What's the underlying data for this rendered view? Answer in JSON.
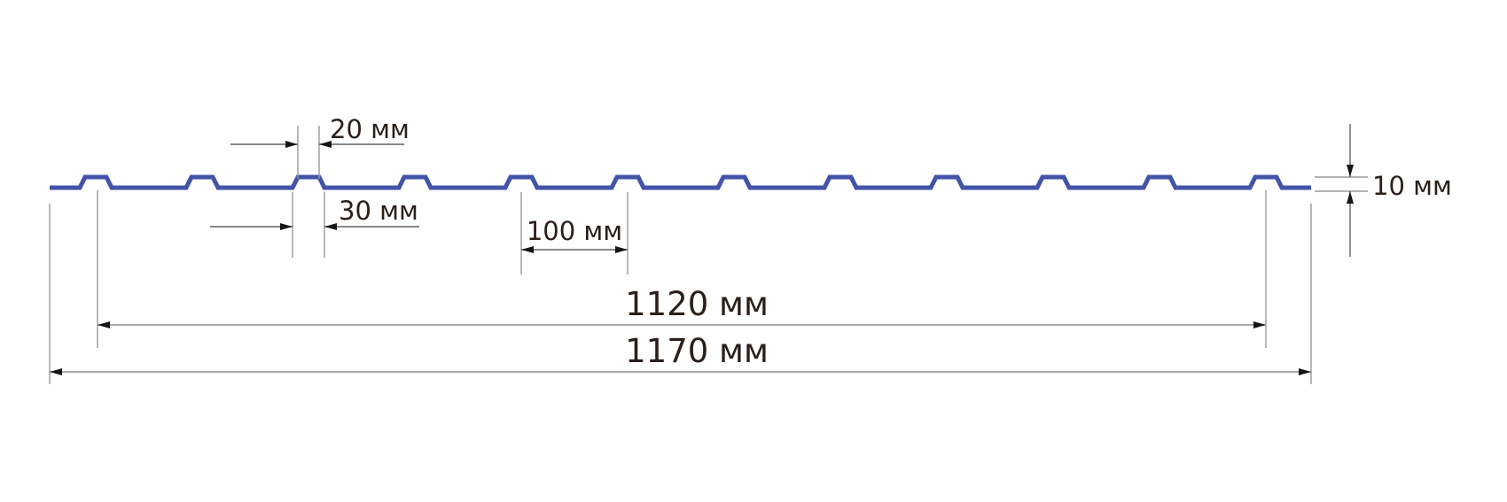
{
  "diagram": {
    "kind": "profiled-sheet-cross-section",
    "unit": "мм",
    "labels": {
      "rib_top_width": "20 мм",
      "rib_base_width": "30 мм",
      "rib_pitch": "100 мм",
      "working_width": "1120 мм",
      "overall_width": "1170 мм",
      "rib_height": "10 мм"
    },
    "values": {
      "rib_top_width_mm": 20,
      "rib_base_width_mm": 30,
      "rib_pitch_mm": 100,
      "working_width_mm": 1120,
      "overall_width_mm": 1170,
      "rib_height_mm": 10
    },
    "rib_count": 12,
    "colors": {
      "profile": "#4254a8",
      "extension_lines": "#9a9a9a",
      "dimension_lines": "#606060",
      "dimension_lines_long": "#8e8e8e",
      "arrowheads": "#151515",
      "text": "#2a1f1a",
      "background": "#ffffff"
    }
  }
}
